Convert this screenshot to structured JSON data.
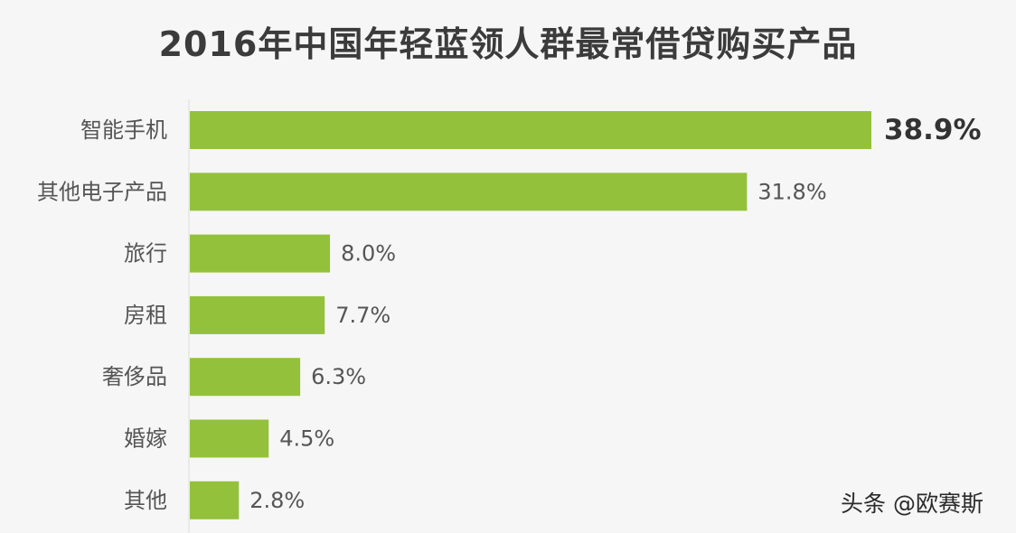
{
  "chart_data": {
    "type": "bar",
    "orientation": "horizontal",
    "title": "2016年中国年轻蓝领人群最常借贷购买产品",
    "categories": [
      "智能手机",
      "其他电子产品",
      "旅行",
      "房租",
      "奢侈品",
      "婚嫁",
      "其他"
    ],
    "values": [
      38.9,
      31.8,
      8.0,
      7.7,
      6.3,
      4.5,
      2.8
    ],
    "value_labels": [
      "38.9%",
      "31.8%",
      "8.0%",
      "7.7%",
      "6.3%",
      "4.5%",
      "2.8%"
    ],
    "unit": "%",
    "xlabel": "",
    "ylabel": "",
    "bar_color": "#94c13b",
    "grid": false,
    "legend": "none"
  },
  "watermark": "头条 @欧赛斯"
}
